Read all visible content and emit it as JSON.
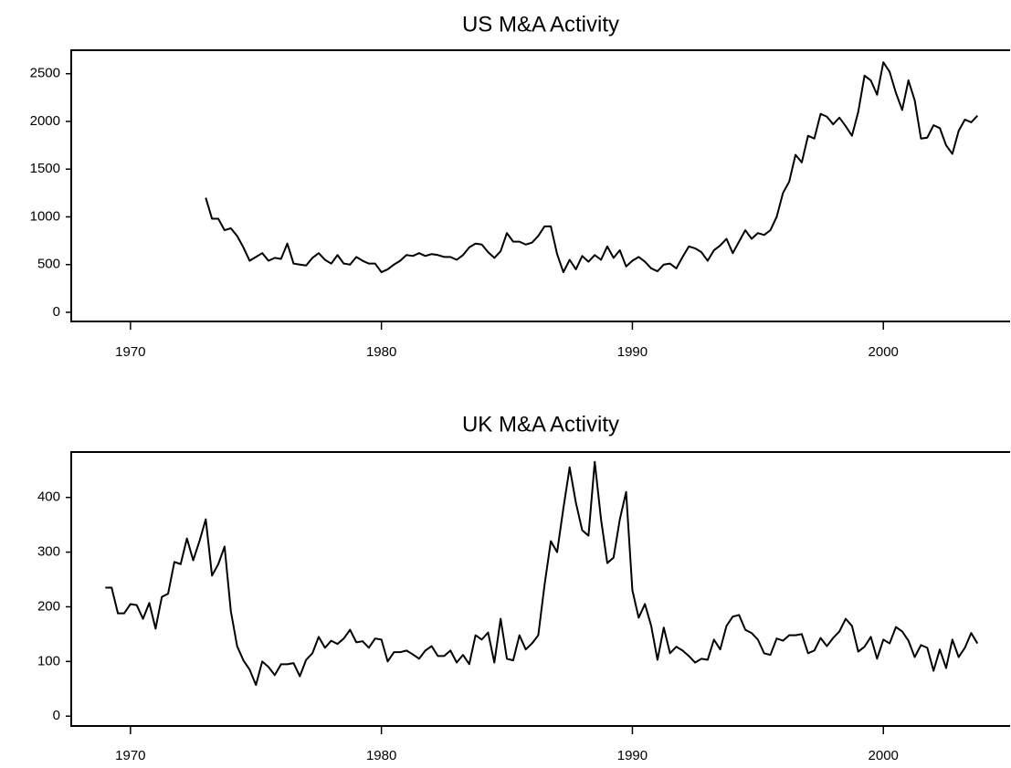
{
  "chart_data": [
    {
      "type": "line",
      "title": "US M&A Activity",
      "x": [
        1973,
        1973.25,
        1973.5,
        1973.75,
        1974,
        1974.25,
        1974.5,
        1974.75,
        1975,
        1975.25,
        1975.5,
        1975.75,
        1976,
        1976.25,
        1976.5,
        1976.75,
        1977,
        1977.25,
        1977.5,
        1977.75,
        1978,
        1978.25,
        1978.5,
        1978.75,
        1979,
        1979.25,
        1979.5,
        1979.75,
        1980,
        1980.25,
        1980.5,
        1980.75,
        1981,
        1981.25,
        1981.5,
        1981.75,
        1982,
        1982.25,
        1982.5,
        1982.75,
        1983,
        1983.25,
        1983.5,
        1983.75,
        1984,
        1984.25,
        1984.5,
        1984.75,
        1985,
        1985.25,
        1985.5,
        1985.75,
        1986,
        1986.25,
        1986.5,
        1986.75,
        1987,
        1987.25,
        1987.5,
        1987.75,
        1988,
        1988.25,
        1988.5,
        1988.75,
        1989,
        1989.25,
        1989.5,
        1989.75,
        1990,
        1990.25,
        1990.5,
        1990.75,
        1991,
        1991.25,
        1991.5,
        1991.75,
        1992,
        1992.25,
        1992.5,
        1992.75,
        1993,
        1993.25,
        1993.5,
        1993.75,
        1994,
        1994.25,
        1994.5,
        1994.75,
        1995,
        1995.25,
        1995.5,
        1995.75,
        1996,
        1996.25,
        1996.5,
        1996.75,
        1997,
        1997.25,
        1997.5,
        1997.75,
        1998,
        1998.25,
        1998.5,
        1998.75,
        1999,
        1999.25,
        1999.5,
        1999.75,
        2000,
        2000.25,
        2000.5,
        2000.75,
        2001,
        2001.25,
        2001.5,
        2001.75,
        2002,
        2002.25,
        2002.5,
        2002.75,
        2003,
        2003.25,
        2003.5,
        2003.75
      ],
      "values": [
        1200,
        980,
        980,
        860,
        880,
        800,
        680,
        540,
        580,
        620,
        540,
        570,
        560,
        720,
        510,
        500,
        490,
        570,
        620,
        550,
        510,
        600,
        510,
        500,
        580,
        540,
        510,
        510,
        420,
        450,
        500,
        540,
        600,
        590,
        620,
        590,
        610,
        600,
        580,
        580,
        550,
        600,
        680,
        720,
        710,
        630,
        570,
        640,
        830,
        740,
        740,
        710,
        730,
        800,
        900,
        900,
        610,
        420,
        550,
        450,
        590,
        530,
        600,
        550,
        690,
        570,
        650,
        480,
        540,
        580,
        530,
        460,
        430,
        500,
        510,
        460,
        580,
        690,
        670,
        630,
        540,
        650,
        700,
        770,
        620,
        740,
        860,
        770,
        830,
        810,
        860,
        1000,
        1250,
        1370,
        1650,
        1570,
        1850,
        1820,
        2080,
        2050,
        1970,
        2040,
        1950,
        1850,
        2100,
        2480,
        2430,
        2280,
        2620,
        2520,
        2300,
        2120,
        2430,
        2220,
        1820,
        1830,
        1960,
        1930,
        1750,
        1660,
        1900,
        2020,
        1990,
        2060
      ],
      "color": "#000000",
      "xlim": [
        1967.64,
        2005.05
      ],
      "xticks": [
        1970,
        1980,
        1990,
        2000
      ],
      "ylim": [
        -96,
        2746
      ],
      "yticks": [
        0,
        500,
        1000,
        1500,
        2000,
        2500
      ]
    },
    {
      "type": "line",
      "title": "UK M&A Activity",
      "x": [
        1969,
        1969.25,
        1969.5,
        1969.75,
        1970,
        1970.25,
        1970.5,
        1970.75,
        1971,
        1971.25,
        1971.5,
        1971.75,
        1972,
        1972.25,
        1972.5,
        1972.75,
        1973,
        1973.25,
        1973.5,
        1973.75,
        1974,
        1974.25,
        1974.5,
        1974.75,
        1975,
        1975.25,
        1975.5,
        1975.75,
        1976,
        1976.25,
        1976.5,
        1976.75,
        1977,
        1977.25,
        1977.5,
        1977.75,
        1978,
        1978.25,
        1978.5,
        1978.75,
        1979,
        1979.25,
        1979.5,
        1979.75,
        1980,
        1980.25,
        1980.5,
        1980.75,
        1981,
        1981.25,
        1981.5,
        1981.75,
        1982,
        1982.25,
        1982.5,
        1982.75,
        1983,
        1983.25,
        1983.5,
        1983.75,
        1984,
        1984.25,
        1984.5,
        1984.75,
        1985,
        1985.25,
        1985.5,
        1985.75,
        1986,
        1986.25,
        1986.5,
        1986.75,
        1987,
        1987.25,
        1987.5,
        1987.75,
        1988,
        1988.25,
        1988.5,
        1988.75,
        1989,
        1989.25,
        1989.5,
        1989.75,
        1990,
        1990.25,
        1990.5,
        1990.75,
        1991,
        1991.25,
        1991.5,
        1991.75,
        1992,
        1992.25,
        1992.5,
        1992.75,
        1993,
        1993.25,
        1993.5,
        1993.75,
        1994,
        1994.25,
        1994.5,
        1994.75,
        1995,
        1995.25,
        1995.5,
        1995.75,
        1996,
        1996.25,
        1996.5,
        1996.75,
        1997,
        1997.25,
        1997.5,
        1997.75,
        1998,
        1998.25,
        1998.5,
        1998.75,
        1999,
        1999.25,
        1999.5,
        1999.75,
        2000,
        2000.25,
        2000.5,
        2000.75,
        2001,
        2001.25,
        2001.5,
        2001.75,
        2002,
        2002.25,
        2002.5,
        2002.75,
        2003,
        2003.25,
        2003.5,
        2003.75
      ],
      "values": [
        235,
        235,
        188,
        188,
        205,
        203,
        178,
        207,
        160,
        218,
        224,
        282,
        278,
        325,
        285,
        320,
        360,
        257,
        278,
        310,
        192,
        128,
        102,
        85,
        57,
        100,
        90,
        75,
        95,
        95,
        97,
        73,
        103,
        115,
        145,
        125,
        138,
        132,
        142,
        158,
        135,
        137,
        125,
        142,
        140,
        100,
        117,
        117,
        120,
        113,
        105,
        120,
        128,
        110,
        110,
        120,
        98,
        112,
        95,
        148,
        140,
        153,
        98,
        178,
        105,
        102,
        148,
        122,
        133,
        148,
        240,
        320,
        300,
        380,
        455,
        390,
        340,
        330,
        465,
        360,
        280,
        290,
        360,
        410,
        230,
        180,
        205,
        165,
        103,
        162,
        115,
        127,
        120,
        110,
        98,
        105,
        103,
        140,
        122,
        165,
        182,
        185,
        158,
        152,
        140,
        115,
        112,
        142,
        138,
        148,
        148,
        150,
        115,
        120,
        143,
        128,
        143,
        155,
        178,
        165,
        118,
        127,
        145,
        105,
        140,
        133,
        163,
        155,
        138,
        108,
        130,
        125,
        83,
        122,
        88,
        140,
        108,
        125,
        152,
        133
      ],
      "color": "#000000",
      "xlim": [
        1967.64,
        2005.05
      ],
      "xticks": [
        1970,
        1980,
        1990,
        2000
      ],
      "ylim": [
        -18,
        483
      ],
      "yticks": [
        0,
        100,
        200,
        300,
        400
      ]
    }
  ]
}
